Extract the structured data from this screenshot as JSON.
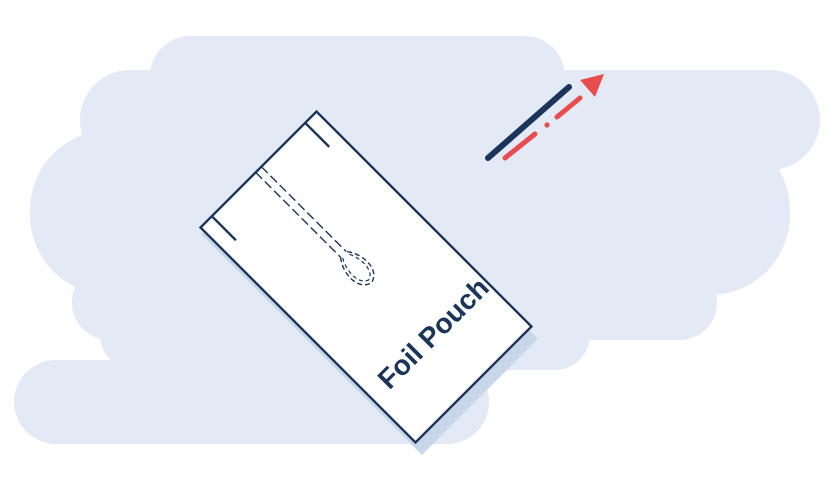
{
  "diagram": {
    "pouch_label": "Foil Pouch",
    "colors": {
      "background_cloud": "#E3EAF6",
      "pouch_fill": "#FFFFFF",
      "pouch_outline": "#1A3559",
      "pouch_shadow": "#C8D6EA",
      "wire": "#1A3559",
      "pull_arrow": "#E84C4C",
      "label_text": "#1A3559"
    },
    "icons": {
      "loop": "wire-loop-icon",
      "arrow": "pull-direction-arrow-icon"
    }
  }
}
